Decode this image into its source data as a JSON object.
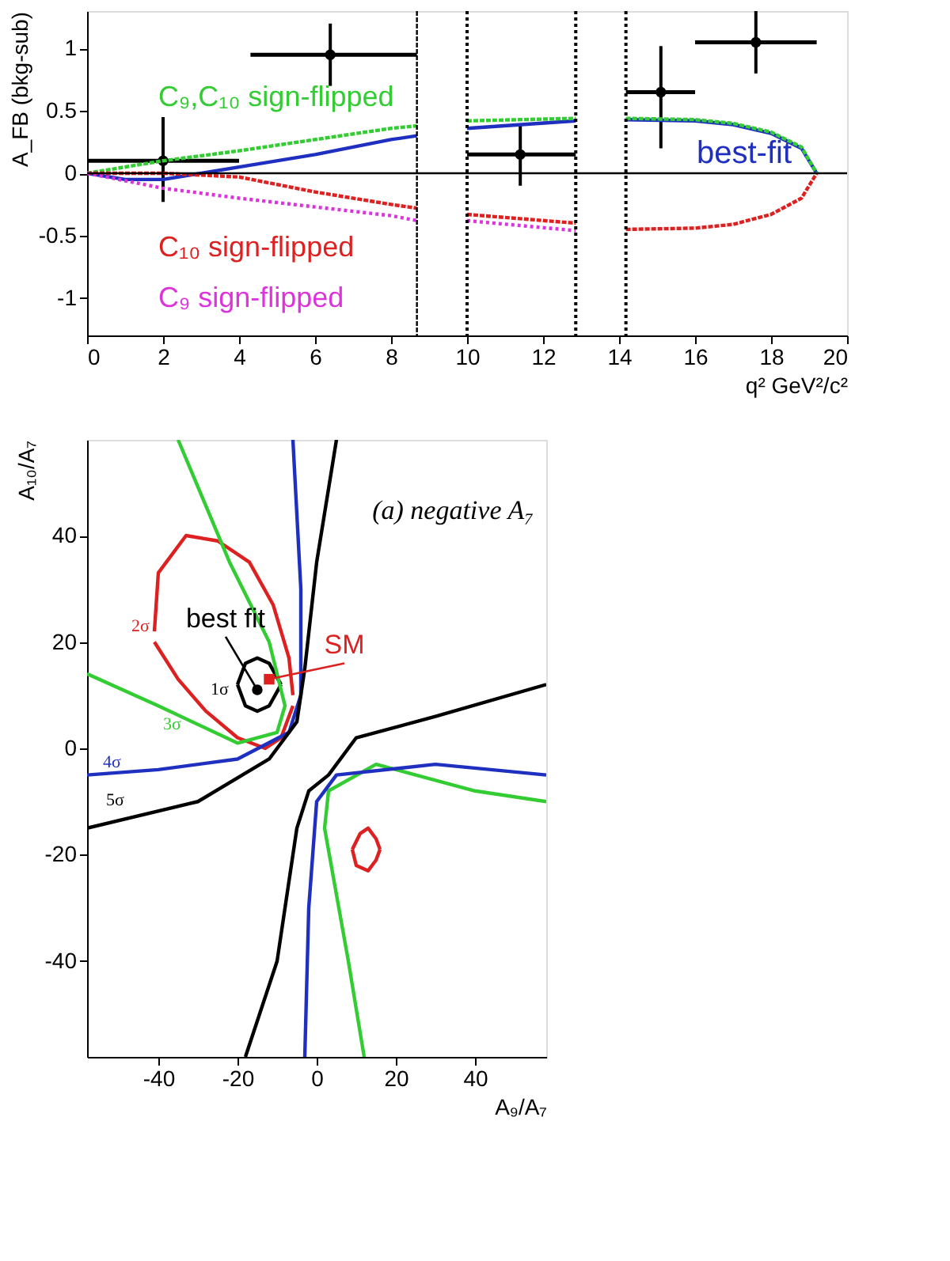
{
  "chart_data": [
    {
      "type": "line",
      "xlabel": "q²   GeV²/c²",
      "ylabel": "A_FB (bkg-sub)",
      "xlim": [
        0,
        20
      ],
      "ylim": [
        -1.3,
        1.3
      ],
      "xticks": [
        0,
        2,
        4,
        6,
        8,
        10,
        12,
        14,
        16,
        18,
        20
      ],
      "yticks": [
        -1,
        -0.5,
        0,
        0.5,
        1
      ],
      "grid": false,
      "legend": false,
      "series": [
        {
          "type": "scatter",
          "color": "#000000",
          "marker": "circle",
          "x": [
            2,
            6.4,
            11.4,
            15.1,
            17.6
          ],
          "values": [
            0.1,
            0.95,
            0.15,
            0.65,
            1.05
          ],
          "errors": [
            [
              -0.23,
              0.45
            ],
            [
              0.7,
              1.2
            ],
            [
              -0.1,
              0.38
            ],
            [
              0.2,
              1.02
            ],
            [
              0.8,
              1.3
            ]
          ],
          "xerrors": [
            [
              0,
              4
            ],
            [
              4.3,
              8.68
            ],
            [
              10,
              12.86
            ],
            [
              14.18,
              16
            ],
            [
              16,
              19.2
            ]
          ]
        },
        {
          "name": "C₉,C₁₀ sign-flipped",
          "color": "#33cc33",
          "line_style": "dashed",
          "x": [
            0,
            2,
            4,
            6,
            8,
            8.68,
            null,
            10,
            12.86,
            null,
            14.18,
            16,
            17,
            18,
            18.8,
            19.2
          ],
          "values": [
            0,
            0.1,
            0.18,
            0.27,
            0.36,
            0.38,
            null,
            0.42,
            0.44,
            null,
            0.44,
            0.43,
            0.4,
            0.33,
            0.21,
            0
          ]
        },
        {
          "name": "best-fit",
          "color": "#1f2fbf",
          "line_style": "solid",
          "x": [
            0,
            1,
            2,
            3,
            4,
            6,
            8,
            8.68,
            null,
            10,
            12.86,
            null,
            14.18,
            16,
            17,
            18,
            18.8,
            19.2
          ],
          "values": [
            0,
            -0.05,
            -0.05,
            0,
            0.05,
            0.15,
            0.27,
            0.3,
            null,
            0.36,
            0.42,
            null,
            0.43,
            0.42,
            0.39,
            0.32,
            0.2,
            0
          ]
        },
        {
          "name": "C₁₀ sign-flipped",
          "color": "#dd2020",
          "line_style": "dashed",
          "x": [
            0,
            2,
            4,
            6,
            8,
            8.68,
            null,
            10,
            12.86,
            null,
            14.18,
            16,
            17,
            18,
            18.8,
            19.2
          ],
          "values": [
            0,
            0,
            -0.03,
            -0.15,
            -0.25,
            -0.28,
            null,
            -0.33,
            -0.4,
            null,
            -0.45,
            -0.44,
            -0.41,
            -0.33,
            -0.2,
            0
          ]
        },
        {
          "name": "C₉ sign-flipped",
          "color": "#dd33dd",
          "line_style": "dotted",
          "x": [
            0,
            2,
            4,
            6,
            8,
            8.68,
            null,
            10,
            12.86
          ],
          "values": [
            0,
            -0.12,
            -0.2,
            -0.27,
            -0.34,
            -0.38,
            null,
            -0.38,
            -0.46
          ]
        }
      ],
      "ref_lines": [
        {
          "axis": "y",
          "value": 0,
          "color": "#000000",
          "line_style": "solid"
        },
        {
          "axis": "x",
          "value": 8.68,
          "color": "#000000",
          "line_style": "dashed"
        },
        {
          "axis": "x",
          "value": 10,
          "color": "#000000",
          "line_style": "dotted"
        },
        {
          "axis": "x",
          "value": 12.86,
          "color": "#000000",
          "line_style": "dotted"
        },
        {
          "axis": "x",
          "value": 14.18,
          "color": "#000000",
          "line_style": "dotted"
        }
      ]
    },
    {
      "type": "line",
      "xlabel": "A₉/A₇",
      "ylabel": "A₁₀/A₇",
      "xlim": [
        -58,
        58
      ],
      "ylim": [
        -58,
        58
      ],
      "xticks": [
        -40,
        -20,
        0,
        20,
        40
      ],
      "yticks": [
        -40,
        -20,
        0,
        20,
        40
      ],
      "grid": false,
      "legend": false,
      "series": [
        {
          "name": "1σ",
          "color": "#000000",
          "line_style": "solid",
          "x": [
            -20,
            -18,
            -15,
            -12,
            -9
          ],
          "values": [
            12,
            16,
            17,
            16,
            12
          ]
        },
        {
          "color": "#000000",
          "line_style": "solid",
          "x": [
            -20,
            -18,
            -15,
            -12,
            -9
          ],
          "values": [
            12,
            8,
            7,
            8,
            12
          ]
        },
        {
          "name": "2σ",
          "color": "#dd2020",
          "line_style": "solid",
          "x": [
            -41,
            -40,
            -33,
            -25,
            -17,
            -11,
            -7,
            -6
          ],
          "values": [
            22,
            33,
            40,
            39,
            35,
            27,
            17,
            10
          ]
        },
        {
          "color": "#dd2020",
          "line_style": "solid",
          "x": [
            -41,
            -35,
            -28,
            -20,
            -13,
            -9,
            -6
          ],
          "values": [
            20,
            13,
            7,
            2,
            0,
            2,
            8
          ]
        },
        {
          "color": "#dd2020",
          "line_style": "solid",
          "x": [
            9,
            11,
            13,
            15,
            16
          ],
          "values": [
            -19,
            -16,
            -15,
            -17,
            -19
          ]
        },
        {
          "color": "#dd2020",
          "line_style": "solid",
          "x": [
            9,
            10,
            13,
            15,
            16
          ],
          "values": [
            -19,
            -22,
            -23,
            -21,
            -19
          ]
        },
        {
          "name": "3σ",
          "color": "#33cc33",
          "line_style": "solid",
          "x": [
            -35,
            -22,
            -12,
            -8,
            -10,
            -20,
            -40,
            -58,
            null,
            58,
            40,
            15,
            3,
            2,
            8,
            12
          ],
          "values": [
            58,
            35,
            20,
            8,
            3,
            1,
            8,
            14,
            null,
            -10,
            -8,
            -3,
            -8,
            -15,
            -40,
            -58
          ]
        },
        {
          "name": "4σ",
          "color": "#1f2fbf",
          "line_style": "solid",
          "x": [
            -6,
            -4,
            -4,
            -7,
            -20,
            -40,
            -58,
            null,
            58,
            30,
            5,
            0,
            -2,
            -3
          ],
          "values": [
            58,
            30,
            10,
            3,
            -2,
            -4,
            -5,
            null,
            -5,
            -3,
            -5,
            -10,
            -30,
            -58
          ]
        },
        {
          "name": "5σ",
          "color": "#000000",
          "line_style": "solid",
          "x": [
            5,
            0,
            -3,
            -5,
            -12,
            -30,
            -58,
            null,
            58,
            30,
            10,
            3,
            -2,
            -5,
            -10,
            -18
          ],
          "values": [
            58,
            35,
            15,
            5,
            -2,
            -10,
            -15,
            null,
            12,
            6,
            2,
            -5,
            -8,
            -15,
            -40,
            -58
          ]
        },
        {
          "type": "scatter",
          "color": "#000000",
          "marker": "circle",
          "x": [
            -15
          ],
          "values": [
            11
          ]
        },
        {
          "type": "scatter",
          "color": "#dd2020",
          "marker": "square",
          "x": [
            -12
          ],
          "values": [
            13
          ]
        }
      ],
      "annotations": [
        "(a) negative A₇",
        {
          "text": "best fit",
          "x": -15,
          "y": 11
        },
        {
          "text": "SM",
          "x": -12,
          "y": 13
        }
      ]
    }
  ]
}
